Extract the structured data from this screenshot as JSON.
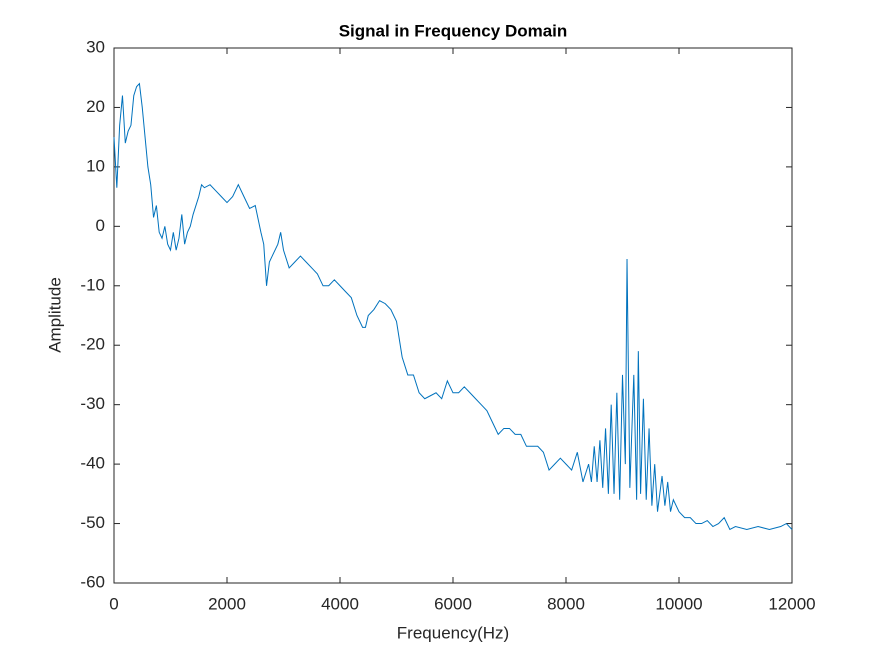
{
  "chart_data": {
    "type": "line",
    "title": "Signal in Frequency Domain",
    "x_label": "Frequency(Hz)",
    "y_label": "Amplitude",
    "xlim": [
      0,
      12000
    ],
    "xticks": [
      0,
      2000,
      4000,
      6000,
      8000,
      10000,
      12000
    ],
    "ylim": [
      -60,
      30
    ],
    "yticks": [
      -60,
      -50,
      -40,
      -30,
      -20,
      -10,
      0,
      10,
      20,
      30
    ],
    "color": "#0072bd",
    "x": [
      0,
      50,
      100,
      150,
      200,
      250,
      300,
      350,
      400,
      450,
      500,
      550,
      600,
      650,
      700,
      750,
      800,
      850,
      900,
      950,
      1000,
      1050,
      1100,
      1150,
      1200,
      1250,
      1300,
      1350,
      1400,
      1500,
      1550,
      1600,
      1700,
      1800,
      1900,
      2000,
      2100,
      2200,
      2300,
      2400,
      2500,
      2600,
      2650,
      2700,
      2750,
      2800,
      2900,
      2950,
      3000,
      3100,
      3200,
      3300,
      3400,
      3500,
      3600,
      3700,
      3800,
      3900,
      4000,
      4100,
      4200,
      4300,
      4400,
      4450,
      4500,
      4600,
      4700,
      4800,
      4900,
      5000,
      5100,
      5200,
      5300,
      5400,
      5500,
      5600,
      5700,
      5800,
      5900,
      6000,
      6100,
      6200,
      6300,
      6400,
      6500,
      6600,
      6700,
      6800,
      6900,
      7000,
      7100,
      7200,
      7300,
      7400,
      7500,
      7600,
      7700,
      7800,
      7900,
      8000,
      8100,
      8200,
      8300,
      8400,
      8450,
      8500,
      8550,
      8600,
      8650,
      8700,
      8750,
      8800,
      8850,
      8900,
      8950,
      9000,
      9050,
      9080,
      9130,
      9200,
      9250,
      9280,
      9320,
      9370,
      9420,
      9470,
      9520,
      9570,
      9620,
      9700,
      9750,
      9800,
      9850,
      9900,
      10000,
      10100,
      10200,
      10300,
      10400,
      10500,
      10600,
      10700,
      10800,
      10900,
      11000,
      11200,
      11400,
      11600,
      11800,
      11900,
      12000
    ],
    "values": [
      15,
      6.5,
      17,
      22,
      14,
      16,
      17,
      22,
      23.5,
      24,
      20,
      15,
      10,
      7,
      1.5,
      3.5,
      -1,
      -2,
      0,
      -3,
      -4,
      -1,
      -4,
      -2,
      2,
      -3,
      -1,
      0,
      2,
      5,
      7,
      6.5,
      7,
      6,
      5,
      4,
      5,
      7,
      5,
      3,
      3.5,
      -1,
      -3,
      -10,
      -6,
      -5,
      -3,
      -1,
      -4,
      -7,
      -6,
      -5,
      -6,
      -7,
      -8,
      -10,
      -10,
      -9,
      -10,
      -11,
      -12,
      -15,
      -17,
      -17,
      -15,
      -14,
      -12.5,
      -13,
      -14,
      -16,
      -22,
      -25,
      -25,
      -28,
      -29,
      -28.5,
      -28,
      -29,
      -26,
      -28,
      -28,
      -27,
      -28,
      -29,
      -30,
      -31,
      -33,
      -35,
      -34,
      -34,
      -35,
      -35,
      -37,
      -37,
      -37,
      -38,
      -41,
      -40,
      -39,
      -40,
      -41,
      -38,
      -43,
      -40,
      -43,
      -37,
      -43,
      -36,
      -44,
      -34,
      -45,
      -30,
      -45,
      -28,
      -46,
      -25,
      -40,
      -5.5,
      -44,
      -25,
      -46,
      -21,
      -45,
      -29,
      -46,
      -34,
      -47,
      -40,
      -48,
      -42,
      -47,
      -43,
      -48,
      -46,
      -48,
      -49,
      -49,
      -50,
      -50,
      -49.5,
      -50.5,
      -50,
      -49,
      -51,
      -50.5,
      -51,
      -50.5,
      -51,
      -50.5,
      -50,
      -51
    ]
  }
}
